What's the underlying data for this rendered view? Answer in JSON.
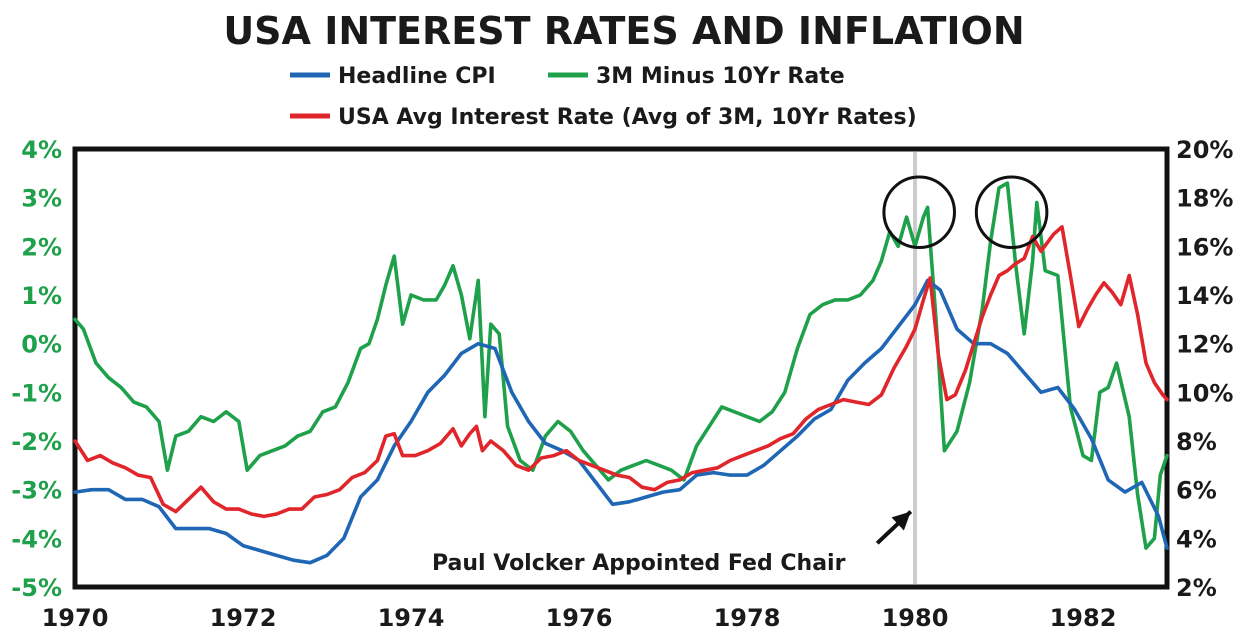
{
  "chart_data": {
    "type": "line",
    "title": "USA INTEREST RATES AND INFLATION",
    "xlabel": "",
    "ylabel_left": "",
    "ylabel_right": "",
    "xlim": [
      1970,
      1983
    ],
    "ylim_left": [
      -5,
      4
    ],
    "ylim_right": [
      2,
      20
    ],
    "x_ticks": [
      "1970",
      "1972",
      "1974",
      "1976",
      "1978",
      "1980",
      "1982"
    ],
    "x_tick_values": [
      1970,
      1972,
      1974,
      1976,
      1978,
      1980,
      1982
    ],
    "y_left_ticks": [
      "4%",
      "3%",
      "2%",
      "1%",
      "0%",
      "-1%",
      "-2%",
      "-3%",
      "-4%",
      "-5%"
    ],
    "y_left_tick_values": [
      4,
      3,
      2,
      1,
      0,
      -1,
      -2,
      -3,
      -4,
      -5
    ],
    "y_right_ticks": [
      "20%",
      "18%",
      "16%",
      "14%",
      "12%",
      "10%",
      "8%",
      "6%",
      "4%",
      "2%"
    ],
    "y_right_tick_values": [
      20,
      18,
      16,
      14,
      12,
      10,
      8,
      6,
      4,
      2
    ],
    "grid": false,
    "legend_position": "top-center",
    "series": [
      {
        "name": "Headline CPI",
        "axis": "right",
        "color": "#1f66b5",
        "points": [
          [
            1970.0,
            5.9
          ],
          [
            1970.2,
            6.0
          ],
          [
            1970.4,
            6.0
          ],
          [
            1970.6,
            5.6
          ],
          [
            1970.8,
            5.6
          ],
          [
            1971.0,
            5.3
          ],
          [
            1971.2,
            4.4
          ],
          [
            1971.4,
            4.4
          ],
          [
            1971.6,
            4.4
          ],
          [
            1971.8,
            4.2
          ],
          [
            1972.0,
            3.7
          ],
          [
            1972.2,
            3.5
          ],
          [
            1972.4,
            3.3
          ],
          [
            1972.6,
            3.1
          ],
          [
            1972.8,
            3.0
          ],
          [
            1973.0,
            3.3
          ],
          [
            1973.2,
            4.0
          ],
          [
            1973.4,
            5.7
          ],
          [
            1973.6,
            6.4
          ],
          [
            1973.8,
            7.8
          ],
          [
            1974.0,
            8.8
          ],
          [
            1974.2,
            10.0
          ],
          [
            1974.4,
            10.7
          ],
          [
            1974.6,
            11.6
          ],
          [
            1974.8,
            12.0
          ],
          [
            1975.0,
            11.8
          ],
          [
            1975.2,
            10.0
          ],
          [
            1975.4,
            8.8
          ],
          [
            1975.6,
            7.9
          ],
          [
            1975.8,
            7.6
          ],
          [
            1976.0,
            7.2
          ],
          [
            1976.2,
            6.3
          ],
          [
            1976.4,
            5.4
          ],
          [
            1976.6,
            5.5
          ],
          [
            1976.8,
            5.7
          ],
          [
            1977.0,
            5.9
          ],
          [
            1977.2,
            6.0
          ],
          [
            1977.4,
            6.6
          ],
          [
            1977.6,
            6.7
          ],
          [
            1977.8,
            6.6
          ],
          [
            1978.0,
            6.6
          ],
          [
            1978.2,
            7.0
          ],
          [
            1978.4,
            7.6
          ],
          [
            1978.6,
            8.2
          ],
          [
            1978.8,
            8.9
          ],
          [
            1979.0,
            9.3
          ],
          [
            1979.2,
            10.5
          ],
          [
            1979.4,
            11.2
          ],
          [
            1979.6,
            11.8
          ],
          [
            1979.8,
            12.7
          ],
          [
            1980.0,
            13.6
          ],
          [
            1980.15,
            14.6
          ],
          [
            1980.3,
            14.2
          ],
          [
            1980.5,
            12.6
          ],
          [
            1980.7,
            12.0
          ],
          [
            1980.9,
            12.0
          ],
          [
            1981.1,
            11.6
          ],
          [
            1981.3,
            10.8
          ],
          [
            1981.5,
            10.0
          ],
          [
            1981.7,
            10.2
          ],
          [
            1981.9,
            9.3
          ],
          [
            1982.1,
            8.1
          ],
          [
            1982.3,
            6.4
          ],
          [
            1982.5,
            5.9
          ],
          [
            1982.7,
            6.3
          ],
          [
            1982.9,
            4.9
          ],
          [
            1983.0,
            3.6
          ]
        ]
      },
      {
        "name": "3M Minus 10Yr Rate",
        "axis": "left",
        "color": "#1fa04a",
        "points": [
          [
            1970.0,
            0.5
          ],
          [
            1970.1,
            0.3
          ],
          [
            1970.25,
            -0.4
          ],
          [
            1970.4,
            -0.7
          ],
          [
            1970.55,
            -0.9
          ],
          [
            1970.7,
            -1.2
          ],
          [
            1970.85,
            -1.3
          ],
          [
            1971.0,
            -1.6
          ],
          [
            1971.1,
            -2.6
          ],
          [
            1971.2,
            -1.9
          ],
          [
            1971.35,
            -1.8
          ],
          [
            1971.5,
            -1.5
          ],
          [
            1971.65,
            -1.6
          ],
          [
            1971.8,
            -1.4
          ],
          [
            1971.95,
            -1.6
          ],
          [
            1972.05,
            -2.6
          ],
          [
            1972.2,
            -2.3
          ],
          [
            1972.35,
            -2.2
          ],
          [
            1972.5,
            -2.1
          ],
          [
            1972.65,
            -1.9
          ],
          [
            1972.8,
            -1.8
          ],
          [
            1972.95,
            -1.4
          ],
          [
            1973.1,
            -1.3
          ],
          [
            1973.25,
            -0.8
          ],
          [
            1973.4,
            -0.1
          ],
          [
            1973.5,
            0.0
          ],
          [
            1973.6,
            0.5
          ],
          [
            1973.7,
            1.2
          ],
          [
            1973.8,
            1.8
          ],
          [
            1973.9,
            0.4
          ],
          [
            1974.0,
            1.0
          ],
          [
            1974.15,
            0.9
          ],
          [
            1974.3,
            0.9
          ],
          [
            1974.4,
            1.2
          ],
          [
            1974.5,
            1.6
          ],
          [
            1974.6,
            1.0
          ],
          [
            1974.7,
            0.1
          ],
          [
            1974.8,
            1.3
          ],
          [
            1974.88,
            -1.5
          ],
          [
            1974.95,
            0.4
          ],
          [
            1975.05,
            0.2
          ],
          [
            1975.15,
            -1.7
          ],
          [
            1975.3,
            -2.4
          ],
          [
            1975.45,
            -2.6
          ],
          [
            1975.6,
            -1.9
          ],
          [
            1975.75,
            -1.6
          ],
          [
            1975.9,
            -1.8
          ],
          [
            1976.05,
            -2.2
          ],
          [
            1976.2,
            -2.5
          ],
          [
            1976.35,
            -2.8
          ],
          [
            1976.5,
            -2.6
          ],
          [
            1976.65,
            -2.5
          ],
          [
            1976.8,
            -2.4
          ],
          [
            1976.95,
            -2.5
          ],
          [
            1977.1,
            -2.6
          ],
          [
            1977.25,
            -2.8
          ],
          [
            1977.4,
            -2.1
          ],
          [
            1977.55,
            -1.7
          ],
          [
            1977.7,
            -1.3
          ],
          [
            1977.85,
            -1.4
          ],
          [
            1978.0,
            -1.5
          ],
          [
            1978.15,
            -1.6
          ],
          [
            1978.3,
            -1.4
          ],
          [
            1978.45,
            -1.0
          ],
          [
            1978.6,
            -0.1
          ],
          [
            1978.75,
            0.6
          ],
          [
            1978.9,
            0.8
          ],
          [
            1979.05,
            0.9
          ],
          [
            1979.2,
            0.9
          ],
          [
            1979.35,
            1.0
          ],
          [
            1979.5,
            1.3
          ],
          [
            1979.6,
            1.7
          ],
          [
            1979.7,
            2.3
          ],
          [
            1979.8,
            2.0
          ],
          [
            1979.9,
            2.6
          ],
          [
            1980.0,
            2.0
          ],
          [
            1980.1,
            2.6
          ],
          [
            1980.15,
            2.8
          ],
          [
            1980.25,
            0.5
          ],
          [
            1980.35,
            -2.2
          ],
          [
            1980.5,
            -1.8
          ],
          [
            1980.65,
            -0.8
          ],
          [
            1980.8,
            0.7
          ],
          [
            1980.9,
            2.1
          ],
          [
            1981.0,
            3.2
          ],
          [
            1981.1,
            3.3
          ],
          [
            1981.2,
            1.6
          ],
          [
            1981.3,
            0.2
          ],
          [
            1981.4,
            1.7
          ],
          [
            1981.45,
            2.9
          ],
          [
            1981.55,
            1.5
          ],
          [
            1981.7,
            1.4
          ],
          [
            1981.85,
            -1.3
          ],
          [
            1982.0,
            -2.3
          ],
          [
            1982.1,
            -2.4
          ],
          [
            1982.2,
            -1.0
          ],
          [
            1982.3,
            -0.9
          ],
          [
            1982.4,
            -0.4
          ],
          [
            1982.55,
            -1.5
          ],
          [
            1982.65,
            -3.1
          ],
          [
            1982.75,
            -4.2
          ],
          [
            1982.85,
            -4.0
          ],
          [
            1982.92,
            -2.7
          ],
          [
            1983.0,
            -2.3
          ]
        ]
      },
      {
        "name": "USA Avg Interest Rate (Avg of 3M, 10Yr Rates)",
        "axis": "right",
        "color": "#e0262b",
        "points": [
          [
            1970.0,
            8.0
          ],
          [
            1970.15,
            7.2
          ],
          [
            1970.3,
            7.4
          ],
          [
            1970.45,
            7.1
          ],
          [
            1970.6,
            6.9
          ],
          [
            1970.75,
            6.6
          ],
          [
            1970.9,
            6.5
          ],
          [
            1971.05,
            5.4
          ],
          [
            1971.2,
            5.1
          ],
          [
            1971.35,
            5.6
          ],
          [
            1971.5,
            6.1
          ],
          [
            1971.65,
            5.5
          ],
          [
            1971.8,
            5.2
          ],
          [
            1971.95,
            5.2
          ],
          [
            1972.1,
            5.0
          ],
          [
            1972.25,
            4.9
          ],
          [
            1972.4,
            5.0
          ],
          [
            1972.55,
            5.2
          ],
          [
            1972.7,
            5.2
          ],
          [
            1972.85,
            5.7
          ],
          [
            1973.0,
            5.8
          ],
          [
            1973.15,
            6.0
          ],
          [
            1973.3,
            6.5
          ],
          [
            1973.45,
            6.7
          ],
          [
            1973.6,
            7.2
          ],
          [
            1973.7,
            8.2
          ],
          [
            1973.8,
            8.3
          ],
          [
            1973.9,
            7.4
          ],
          [
            1974.05,
            7.4
          ],
          [
            1974.2,
            7.6
          ],
          [
            1974.35,
            7.9
          ],
          [
            1974.5,
            8.5
          ],
          [
            1974.6,
            7.8
          ],
          [
            1974.7,
            8.3
          ],
          [
            1974.78,
            8.6
          ],
          [
            1974.85,
            7.6
          ],
          [
            1974.95,
            8.0
          ],
          [
            1975.1,
            7.6
          ],
          [
            1975.25,
            7.0
          ],
          [
            1975.4,
            6.8
          ],
          [
            1975.55,
            7.3
          ],
          [
            1975.7,
            7.4
          ],
          [
            1975.85,
            7.6
          ],
          [
            1976.0,
            7.2
          ],
          [
            1976.15,
            7.0
          ],
          [
            1976.3,
            6.8
          ],
          [
            1976.45,
            6.6
          ],
          [
            1976.6,
            6.5
          ],
          [
            1976.75,
            6.1
          ],
          [
            1976.9,
            6.0
          ],
          [
            1977.05,
            6.3
          ],
          [
            1977.2,
            6.4
          ],
          [
            1977.35,
            6.7
          ],
          [
            1977.5,
            6.8
          ],
          [
            1977.65,
            6.9
          ],
          [
            1977.8,
            7.2
          ],
          [
            1977.95,
            7.4
          ],
          [
            1978.1,
            7.6
          ],
          [
            1978.25,
            7.8
          ],
          [
            1978.4,
            8.1
          ],
          [
            1978.55,
            8.3
          ],
          [
            1978.7,
            8.9
          ],
          [
            1978.85,
            9.3
          ],
          [
            1979.0,
            9.5
          ],
          [
            1979.15,
            9.7
          ],
          [
            1979.3,
            9.6
          ],
          [
            1979.45,
            9.5
          ],
          [
            1979.6,
            9.9
          ],
          [
            1979.75,
            11.0
          ],
          [
            1979.9,
            11.9
          ],
          [
            1980.0,
            12.6
          ],
          [
            1980.1,
            13.8
          ],
          [
            1980.18,
            14.7
          ],
          [
            1980.28,
            11.5
          ],
          [
            1980.38,
            9.7
          ],
          [
            1980.48,
            9.9
          ],
          [
            1980.6,
            10.9
          ],
          [
            1980.7,
            12.0
          ],
          [
            1980.8,
            13.1
          ],
          [
            1980.9,
            14.0
          ],
          [
            1981.0,
            14.8
          ],
          [
            1981.1,
            15.0
          ],
          [
            1981.2,
            15.3
          ],
          [
            1981.3,
            15.5
          ],
          [
            1981.4,
            16.4
          ],
          [
            1981.5,
            15.8
          ],
          [
            1981.65,
            16.5
          ],
          [
            1981.75,
            16.8
          ],
          [
            1981.85,
            14.8
          ],
          [
            1981.95,
            12.7
          ],
          [
            1982.05,
            13.4
          ],
          [
            1982.15,
            14.0
          ],
          [
            1982.25,
            14.5
          ],
          [
            1982.35,
            14.1
          ],
          [
            1982.45,
            13.6
          ],
          [
            1982.55,
            14.8
          ],
          [
            1982.65,
            13.2
          ],
          [
            1982.75,
            11.2
          ],
          [
            1982.85,
            10.4
          ],
          [
            1982.95,
            9.9
          ],
          [
            1983.0,
            9.7
          ]
        ]
      }
    ],
    "vline": {
      "x": 1980.0,
      "color": "#cccccc"
    },
    "annotation": {
      "text": "Paul Volcker Appointed Fed Chair",
      "arrow_from": [
        1979.55,
        3.8
      ],
      "arrow_to": [
        1979.95,
        5.1
      ]
    },
    "circles": [
      {
        "cx": 1980.05,
        "cy": 2.7,
        "r_years": 0.42
      },
      {
        "cx": 1981.15,
        "cy": 2.7,
        "r_years": 0.42
      }
    ]
  }
}
